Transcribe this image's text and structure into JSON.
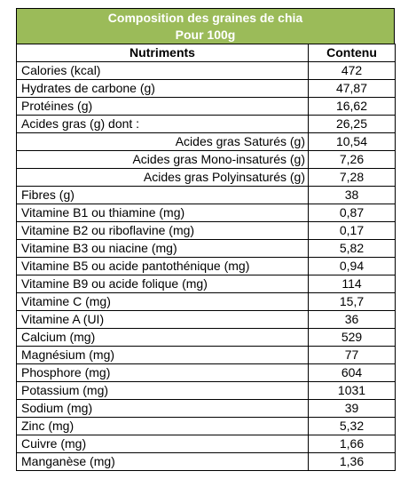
{
  "title": {
    "line1": "Composition des graines de chia",
    "line2": "Pour 100g"
  },
  "headers": {
    "nutrient": "Nutriments",
    "value": "Contenu"
  },
  "colors": {
    "title_background": "#9bbb59",
    "title_text": "#ffffff"
  },
  "rows": [
    {
      "label": "Calories (kcal)",
      "value": "472",
      "sub": false
    },
    {
      "label": "Hydrates de carbone (g)",
      "value": "47,87",
      "sub": false
    },
    {
      "label": "Protéines (g)",
      "value": "16,62",
      "sub": false
    },
    {
      "label": "Acides gras (g) dont :",
      "value": "26,25",
      "sub": false
    },
    {
      "label": "Acides gras Saturés (g)",
      "value": "10,54",
      "sub": true
    },
    {
      "label": "Acides gras Mono-insaturés (g)",
      "value": "7,26",
      "sub": true
    },
    {
      "label": "Acides gras Polyinsaturés (g)",
      "value": "7,28",
      "sub": true
    },
    {
      "label": "Fibres (g)",
      "value": "38",
      "sub": false
    },
    {
      "label": "Vitamine B1 ou thiamine (mg)",
      "value": "0,87",
      "sub": false
    },
    {
      "label": "Vitamine B2 ou riboflavine (mg)",
      "value": "0,17",
      "sub": false
    },
    {
      "label": "Vitamine B3 ou niacine (mg)",
      "value": "5,82",
      "sub": false
    },
    {
      "label": "Vitamine B5 ou acide pantothénique (mg)",
      "value": "0,94",
      "sub": false
    },
    {
      "label": "Vitamine B9 ou acide folique (mg)",
      "value": "114",
      "sub": false
    },
    {
      "label": "Vitamine C (mg)",
      "value": "15,7",
      "sub": false
    },
    {
      "label": "Vitamine A (UI)",
      "value": "36",
      "sub": false
    },
    {
      "label": "Calcium (mg)",
      "value": "529",
      "sub": false
    },
    {
      "label": "Magnésium (mg)",
      "value": "77",
      "sub": false
    },
    {
      "label": "Phosphore (mg)",
      "value": "604",
      "sub": false
    },
    {
      "label": "Potassium (mg)",
      "value": "1031",
      "sub": false
    },
    {
      "label": "Sodium (mg)",
      "value": "39",
      "sub": false
    },
    {
      "label": "Zinc (mg)",
      "value": "5,32",
      "sub": false
    },
    {
      "label": "Cuivre (mg)",
      "value": "1,66",
      "sub": false
    },
    {
      "label": "Manganèse (mg)",
      "value": "1,36",
      "sub": false
    }
  ]
}
